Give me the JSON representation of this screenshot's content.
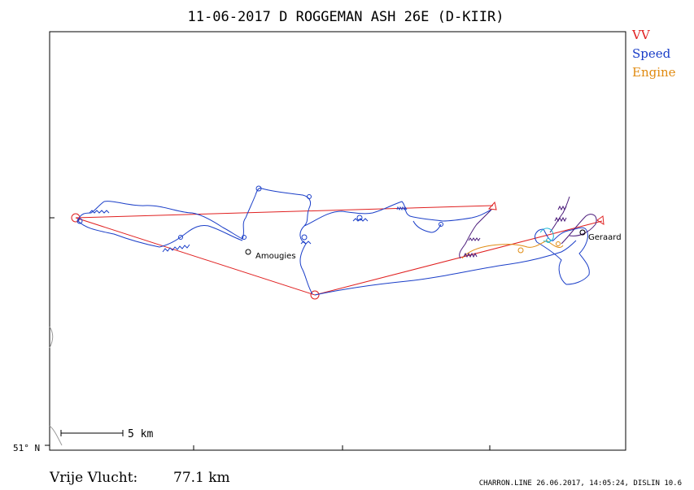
{
  "chart_data": {
    "type": "map-track",
    "title": "11-06-2017   D ROGGEMAN    ASH 26E (D-KIIR)",
    "legend": [
      {
        "label": "VV",
        "color": "#e02020"
      },
      {
        "label": "Speed",
        "color": "#1a3ec8"
      },
      {
        "label": "Engine",
        "color": "#e08a10"
      }
    ],
    "places": [
      "Amougies",
      "Geraard"
    ],
    "lat_label": "51° N",
    "scale_label": "5 km",
    "distance_label": "Vrije Vlucht:",
    "distance_value": "77.1 km",
    "footer_info": "CHARRON.LINE 26.06.2017, 14:05:24, DISLIN 10.6"
  },
  "colors": {
    "task": "#e02020",
    "track": "#1a3ec8",
    "engine": "#e08a10",
    "thermal": "#4a1a7a",
    "cyan": "#20b8d8",
    "frame": "#000000"
  }
}
